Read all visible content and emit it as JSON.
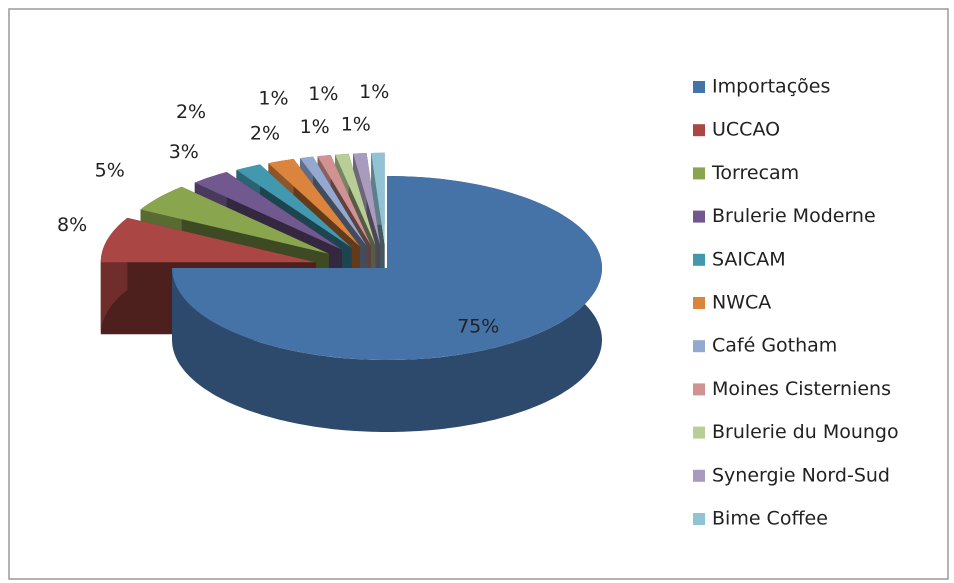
{
  "chart_data": {
    "type": "pie",
    "categories": [
      "Importações",
      "UCCAO",
      "Torrecam",
      "Brulerie Moderne",
      "SAICAM",
      "NWCA",
      "Café Gotham",
      "Moines Cisterniens",
      "Brulerie du Moungo",
      "Synergie Nord-Sud",
      "Bime Coffee"
    ],
    "values": [
      75,
      8,
      5,
      3,
      2,
      2,
      1,
      1,
      1,
      1,
      1
    ],
    "value_labels": [
      "75%",
      "8%",
      "5%",
      "3%",
      "2%",
      "2%",
      "1%",
      "1%",
      "1%",
      "1%",
      "1%"
    ],
    "colors": [
      "#4572a7",
      "#aa4643",
      "#89a54e",
      "#71588f",
      "#4198af",
      "#db843d",
      "#93a9cf",
      "#d19392",
      "#b9cd96",
      "#a99bbd",
      "#91c3d5"
    ],
    "legend": "right"
  }
}
